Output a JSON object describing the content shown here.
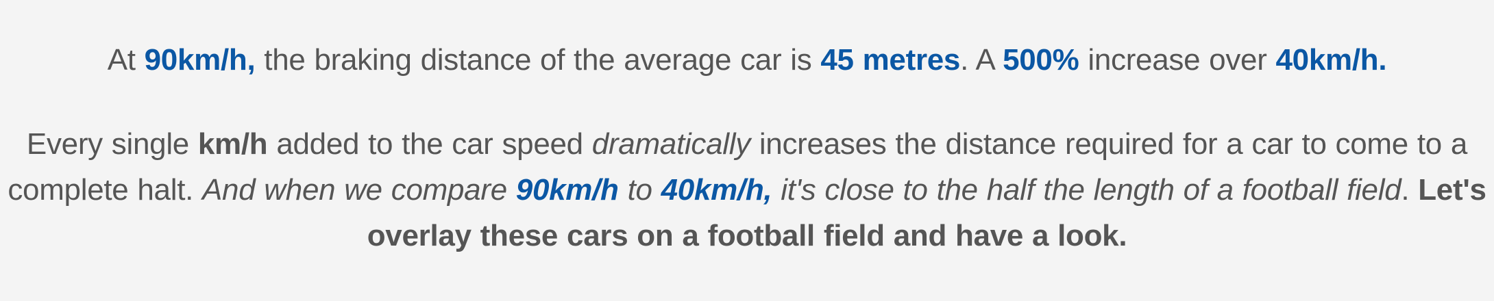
{
  "paragraph1": {
    "t1": "At ",
    "speed_90": "90km/h,",
    "t2": " the braking distance of the average car is ",
    "distance": "45 metres",
    "t3": ". A ",
    "increase": "500%",
    "t4": " increase over ",
    "speed_40": "40km/h."
  },
  "paragraph2": {
    "t1": "Every single ",
    "unit": "km/h",
    "t2": " added to the car speed ",
    "emph": "dramatically",
    "t3": " increases the distance required for a car to come to a complete halt. ",
    "t4": "And when we compare ",
    "speed_90": "90km/h",
    "t5": " to ",
    "speed_40": "40km/h,",
    "t6": " it's close to the half the length of a football field",
    "t7": ". ",
    "cta": "Let's overlay these cars on a football field and have a look."
  },
  "colors": {
    "highlight": "#0b57a4",
    "text": "#555555",
    "background": "#f4f4f4"
  }
}
